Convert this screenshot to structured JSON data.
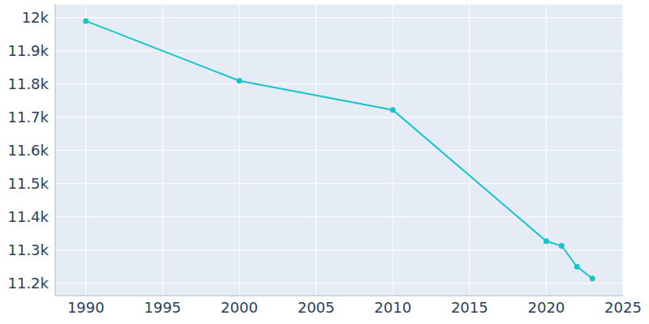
{
  "chart_data": {
    "type": "line",
    "x": [
      1990,
      2000,
      2010,
      2020,
      2021,
      2022,
      2023
    ],
    "values": [
      11990,
      11810,
      11722,
      11327,
      11313,
      11250,
      11215
    ],
    "color": "#17c5c8",
    "xlim": [
      1988,
      2025
    ],
    "xticks": [
      1990,
      1995,
      2000,
      2005,
      2010,
      2015,
      2020,
      2025
    ],
    "ylim": [
      11163,
      12041
    ],
    "yticks": [
      {
        "value": 11200,
        "label": "11.2k"
      },
      {
        "value": 11300,
        "label": "11.3k"
      },
      {
        "value": 11400,
        "label": "11.4k"
      },
      {
        "value": 11500,
        "label": "11.5k"
      },
      {
        "value": 11600,
        "label": "11.6k"
      },
      {
        "value": 11700,
        "label": "11.7k"
      },
      {
        "value": 11800,
        "label": "11.8k"
      },
      {
        "value": 11900,
        "label": "11.9k"
      },
      {
        "value": 12000,
        "label": "12k"
      }
    ],
    "grid": true,
    "marker": "circle"
  }
}
